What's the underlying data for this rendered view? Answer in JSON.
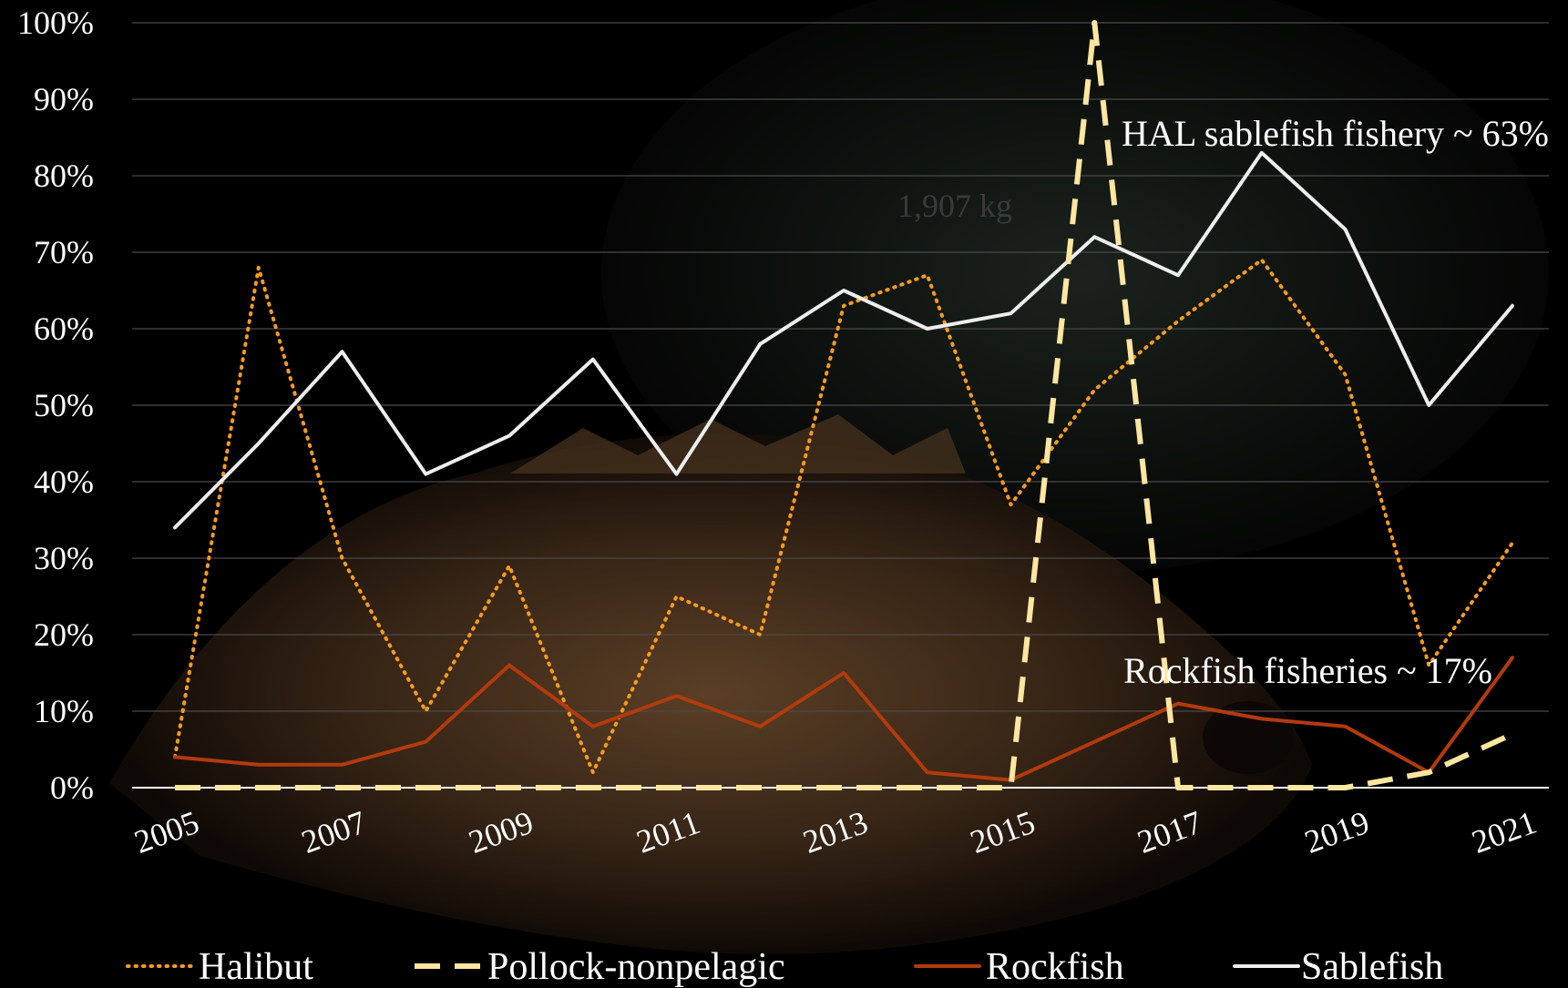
{
  "colors": {
    "background": "#000000",
    "grid": "#4a4a4a",
    "axis": "#ffffff",
    "halibut": "#f59a1c",
    "pollock": "#fde6a0",
    "rockfish": "#b33a0c",
    "sablefish": "#eeeeee"
  },
  "chart_data": {
    "type": "line",
    "x": [
      2005,
      2006,
      2007,
      2008,
      2009,
      2010,
      2011,
      2012,
      2013,
      2014,
      2015,
      2016,
      2017,
      2018,
      2019,
      2020,
      2021
    ],
    "x_tick_labels": [
      "2005",
      "2007",
      "2009",
      "2011",
      "2013",
      "2015",
      "2017",
      "2019",
      "2021"
    ],
    "y_tick_labels": [
      "0%",
      "10%",
      "20%",
      "30%",
      "40%",
      "50%",
      "60%",
      "70%",
      "80%",
      "90%",
      "100%"
    ],
    "ylim": [
      0,
      100
    ],
    "grid": true,
    "legend_position": "bottom",
    "series": [
      {
        "name": "Halibut",
        "style": "dotted",
        "color": "#f59a1c",
        "values": [
          4,
          68,
          30,
          10,
          29,
          2,
          25,
          20,
          63,
          67,
          37,
          52,
          61,
          69,
          54,
          16,
          32
        ]
      },
      {
        "name": "Pollock-nonpelagic",
        "style": "dashed",
        "color": "#fde6a0",
        "values": [
          0,
          0,
          0,
          0,
          0,
          0,
          0,
          0,
          0,
          0,
          0,
          100,
          0,
          0,
          0,
          2,
          7
        ]
      },
      {
        "name": "Rockfish",
        "style": "solid",
        "color": "#b33a0c",
        "values": [
          4,
          3,
          3,
          6,
          16,
          8,
          12,
          8,
          15,
          2,
          1,
          6,
          11,
          9,
          8,
          2,
          17
        ]
      },
      {
        "name": "Sablefish",
        "style": "solid",
        "color": "#eeeeee",
        "values": [
          34,
          45,
          57,
          41,
          46,
          56,
          41,
          58,
          65,
          60,
          62,
          72,
          67,
          83,
          73,
          50,
          63
        ]
      }
    ],
    "annotations": [
      {
        "text": "HAL sablefish fishery ~ 63%"
      },
      {
        "text": "Rockfish fisheries ~ 17%"
      },
      {
        "text": "1,907 kg"
      }
    ]
  }
}
